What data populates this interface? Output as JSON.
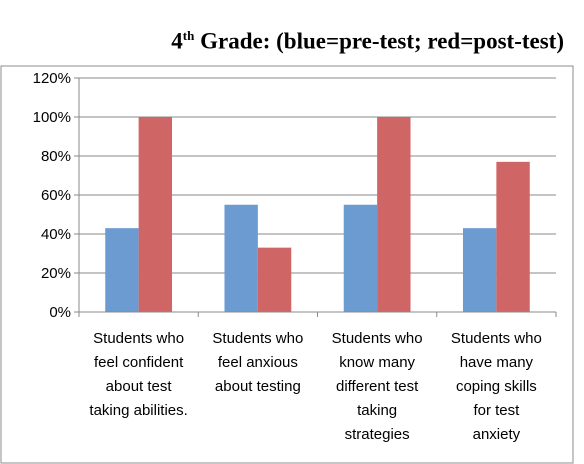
{
  "chart_data": {
    "type": "bar",
    "title_prefix": "4",
    "title_sup": "th",
    "title_rest": " Grade: (blue=pre-test; red=post-test)",
    "categories": [
      [
        "Students who",
        "feel confident",
        "about test",
        "taking abilities."
      ],
      [
        "Students who",
        "feel anxious",
        "about testing"
      ],
      [
        "Students who",
        "know many",
        "different test",
        "taking",
        "strategies"
      ],
      [
        "Students who",
        "have many",
        "coping skills",
        "for test",
        "anxiety"
      ]
    ],
    "series": [
      {
        "color": "#6b9bd1",
        "values": [
          43,
          55,
          55,
          43
        ]
      },
      {
        "color": "#d06565",
        "values": [
          100,
          33,
          100,
          77
        ]
      }
    ],
    "ylim": [
      0,
      120
    ],
    "yticks": [
      "0%",
      "20%",
      "40%",
      "60%",
      "80%",
      "100%",
      "120%"
    ],
    "grid": true
  }
}
